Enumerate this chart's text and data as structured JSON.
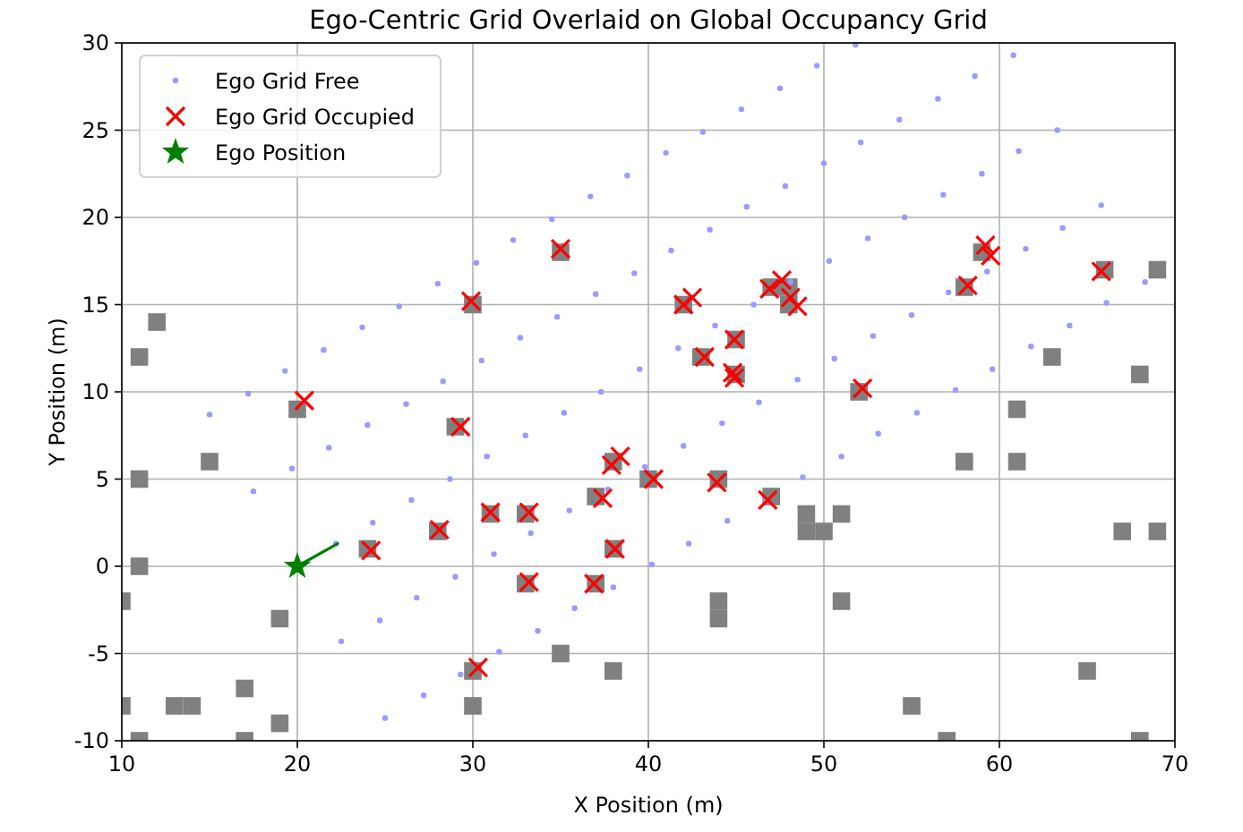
{
  "chart_data": {
    "type": "scatter",
    "title": "Ego-Centric Grid Overlaid on Global Occupancy Grid",
    "xlabel": "X Position (m)",
    "ylabel": "Y Position (m)",
    "xlim": [
      10,
      70
    ],
    "ylim": [
      -10,
      30
    ],
    "xticks": [
      10,
      20,
      30,
      40,
      50,
      60,
      70
    ],
    "yticks": [
      -10,
      -5,
      0,
      5,
      10,
      15,
      20,
      25,
      30
    ],
    "grid": true,
    "legend": "top left",
    "series": [
      {
        "marker": "square",
        "color": "#808080",
        "x": [
          11,
          12,
          11,
          15,
          11,
          10,
          13,
          14,
          10,
          11,
          17,
          17,
          19,
          19,
          20,
          24,
          28,
          29,
          30,
          30,
          30,
          31,
          33,
          33,
          35,
          35,
          37,
          37,
          38,
          38,
          38,
          40,
          42,
          43,
          45,
          44,
          45,
          47,
          47,
          48,
          48,
          52,
          58,
          59,
          66,
          49,
          49,
          50,
          51,
          51,
          44,
          44,
          55,
          57,
          58,
          61,
          61,
          63,
          65,
          67,
          68,
          69,
          69,
          68
        ],
        "values": [
          12,
          14,
          5,
          6,
          0,
          -2,
          -8,
          -8,
          -8,
          -10,
          -7,
          -10,
          -3,
          -9,
          9,
          1,
          2,
          8,
          15,
          -6,
          -8,
          3,
          3,
          -1,
          18,
          -5,
          -1,
          4,
          1,
          6,
          -6,
          5,
          15,
          12,
          13,
          5,
          11,
          4,
          16,
          16,
          15,
          10,
          16,
          18,
          17,
          3,
          2,
          2,
          3,
          -2,
          -2,
          -3,
          -8,
          -10,
          6,
          9,
          6,
          12,
          -6,
          2,
          11,
          17,
          2,
          -10
        ]
      },
      {
        "name": "Ego Grid Free",
        "marker": "circle",
        "color": "#9a9aff",
        "x": [
          25.0,
          27.2,
          29.3,
          31.5,
          33.7,
          35.8,
          38.0,
          40.2,
          42.3,
          44.5,
          46.7,
          48.8,
          51.0,
          53.1,
          55.3,
          57.5,
          59.6,
          61.8,
          64.0,
          66.1,
          68.3,
          22.5,
          24.7,
          26.8,
          29.0,
          31.2,
          33.3,
          35.5,
          37.7,
          39.8,
          42.0,
          44.2,
          46.3,
          48.5,
          50.6,
          52.8,
          55.0,
          57.1,
          59.3,
          61.5,
          63.6,
          65.8,
          22.2,
          24.3,
          26.5,
          28.7,
          30.8,
          33.0,
          35.2,
          37.3,
          39.5,
          41.7,
          43.8,
          46.0,
          48.1,
          50.3,
          52.5,
          54.6,
          56.8,
          59.0,
          61.1,
          63.3,
          17.5,
          19.7,
          21.8,
          24.0,
          26.2,
          28.3,
          30.5,
          32.7,
          34.8,
          37.0,
          39.2,
          41.3,
          43.5,
          45.6,
          47.8,
          50.0,
          52.1,
          54.3,
          56.5,
          58.6,
          60.8,
          15.0,
          17.2,
          19.3,
          21.5,
          23.7,
          25.8,
          28.0,
          30.2,
          32.3,
          34.5,
          36.7,
          38.8,
          41.0,
          43.1,
          45.3,
          47.5,
          49.6,
          51.8
        ],
        "values": [
          -8.7,
          -7.4,
          -6.2,
          -4.9,
          -3.7,
          -2.4,
          -1.2,
          0.1,
          1.3,
          2.6,
          3.8,
          5.1,
          6.3,
          7.6,
          8.8,
          10.1,
          11.3,
          12.6,
          13.8,
          15.1,
          16.3,
          -4.3,
          -3.1,
          -1.8,
          -0.6,
          0.7,
          1.9,
          3.2,
          4.4,
          5.7,
          6.9,
          8.2,
          9.4,
          10.7,
          11.9,
          13.2,
          14.4,
          15.7,
          16.9,
          18.2,
          19.4,
          20.7,
          1.3,
          2.5,
          3.8,
          5,
          6.3,
          7.5,
          8.8,
          10,
          11.3,
          12.5,
          13.8,
          15,
          16.3,
          17.5,
          18.8,
          20,
          21.3,
          22.5,
          23.8,
          25,
          4.3,
          5.6,
          6.8,
          8.1,
          9.3,
          10.6,
          11.8,
          13.1,
          14.3,
          15.6,
          16.8,
          18.1,
          19.3,
          20.6,
          21.8,
          23.1,
          24.3,
          25.6,
          26.8,
          28.1,
          29.3,
          8.7,
          9.9,
          11.2,
          12.4,
          13.7,
          14.9,
          16.2,
          17.4,
          18.7,
          19.9,
          21.2,
          22.4,
          23.7,
          24.9,
          26.2,
          27.4,
          28.7,
          29.9
        ]
      },
      {
        "name": "Ego Grid Occupied",
        "marker": "cross",
        "color": "#ff0000",
        "x": [
          20.4,
          29.3,
          24.2,
          28.1,
          31.0,
          33.2,
          33.2,
          37.4,
          38.1,
          36.9,
          37.9,
          38.4,
          30.3,
          40.3,
          43.9,
          46.8,
          52.2,
          44.9,
          42.0,
          42.5,
          43.2,
          44.9,
          44.8,
          46.9,
          47.6,
          48.1,
          48.5,
          58.2,
          59.2,
          59.5,
          65.8,
          35.0,
          29.9
        ],
        "values": [
          9.5,
          8.0,
          0.9,
          2.1,
          3.1,
          3.1,
          -0.9,
          3.9,
          1.0,
          -1.0,
          5.8,
          6.3,
          -5.8,
          5.0,
          4.8,
          3.8,
          10.2,
          10.8,
          15.0,
          15.4,
          12.0,
          13.0,
          11.1,
          15.9,
          16.4,
          15.4,
          14.9,
          16.1,
          18.4,
          17.8,
          16.9,
          18.2,
          15.2
        ]
      },
      {
        "type": "line",
        "marker": "none",
        "color": "#008000",
        "x": [
          20,
          22.3
        ],
        "values": [
          0,
          1.3
        ]
      },
      {
        "name": "Ego Position",
        "marker": "star",
        "color": "#008000",
        "x": [
          20
        ],
        "values": [
          0
        ]
      }
    ]
  }
}
